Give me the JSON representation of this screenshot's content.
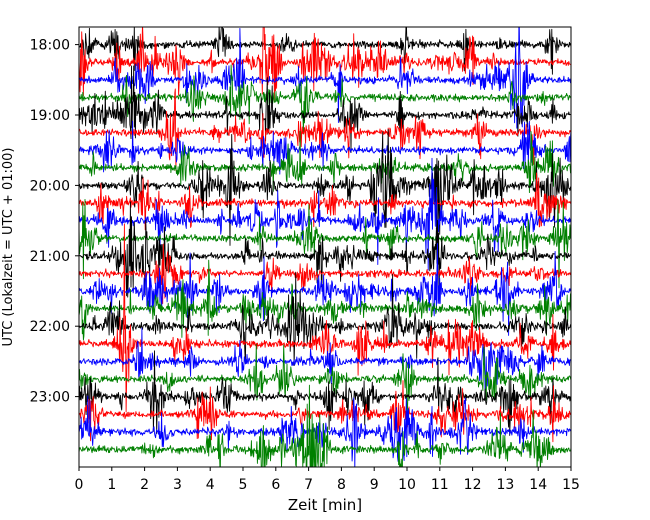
{
  "chart_data": {
    "type": "line",
    "title": "",
    "xlabel": "Zeit  [min]",
    "ylabel": "UTC (Lokalzeit = UTC + 01:00)",
    "xlim": [
      0,
      15
    ],
    "x_ticks": [
      0,
      1,
      2,
      3,
      4,
      5,
      6,
      7,
      8,
      9,
      10,
      11,
      12,
      13,
      14,
      15
    ],
    "ylim_utc": [
      "17:45",
      "24:00"
    ],
    "y_tick_labels": [
      "18:00",
      "19:00",
      "20:00",
      "21:00",
      "22:00",
      "23:00"
    ],
    "y_ticks_hours": [
      18,
      19,
      20,
      21,
      22,
      23
    ],
    "trace_interval_min": 15,
    "first_trace_utc": "18:00",
    "last_trace_utc": "23:45",
    "trace_colors_cycle": [
      "#000000",
      "#ff0000",
      "#0000ff",
      "#008000"
    ],
    "grid": false,
    "legend": "none"
  }
}
